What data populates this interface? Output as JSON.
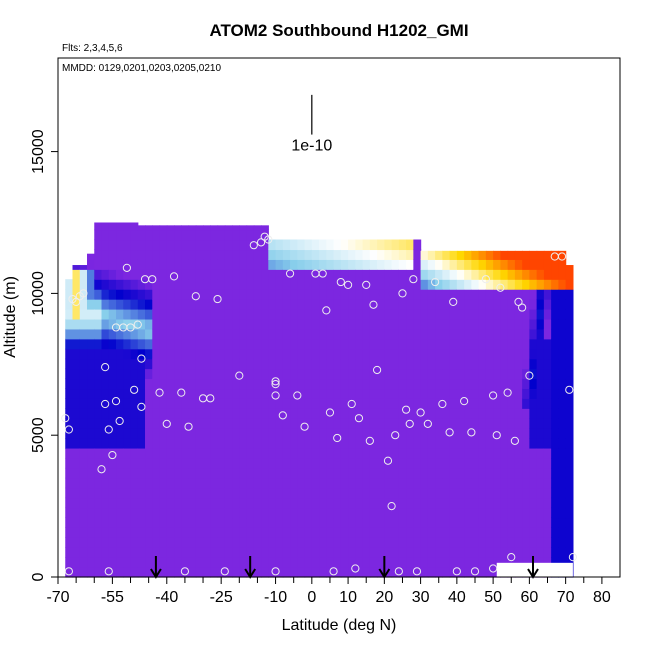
{
  "chart_data": {
    "type": "heatmap",
    "title": "ATOM2 Southbound H1202_GMI",
    "flights_label": "Flts: 2,3,4,5,6",
    "dates_label": "MMDD: 0129,0201,0203,0205,0210",
    "xlabel": "Latitude (deg N)",
    "ylabel": "Altitude (m)",
    "xlim": [
      -70,
      85
    ],
    "ylim": [
      0,
      17500
    ],
    "x_major_ticks": [
      -70,
      -55,
      -40,
      -25,
      -10,
      0,
      10,
      20,
      30,
      40,
      50,
      60,
      70,
      80
    ],
    "x_minor_ticks": [
      -65,
      -60,
      -50,
      -45,
      -35,
      -30,
      -20,
      -15,
      -5,
      5,
      15,
      25,
      35,
      45,
      55,
      65,
      75
    ],
    "y_ticks": [
      0,
      5000,
      10000,
      15000
    ],
    "scale_bar_label": "1e-10",
    "scale_bar": {
      "lat": 0,
      "alt_top": 17000,
      "alt_bottom": 15600
    },
    "color_scale": [
      "#8a2be2",
      "#0000cd",
      "#87ceeb",
      "#ffffff",
      "#ffd700",
      "#ff4500"
    ],
    "observation_points": [
      {
        "lat": -68,
        "alt": 5600
      },
      {
        "lat": -67,
        "alt": 5200
      },
      {
        "lat": -67,
        "alt": 200
      },
      {
        "lat": -66,
        "alt": 9800
      },
      {
        "lat": -65,
        "alt": 9700
      },
      {
        "lat": -64,
        "alt": 9900
      },
      {
        "lat": -63,
        "alt": 10000
      },
      {
        "lat": -58,
        "alt": 3800
      },
      {
        "lat": -57,
        "alt": 7400
      },
      {
        "lat": -57,
        "alt": 6100
      },
      {
        "lat": -56,
        "alt": 5200
      },
      {
        "lat": -56,
        "alt": 200
      },
      {
        "lat": -55,
        "alt": 4300
      },
      {
        "lat": -54,
        "alt": 6200
      },
      {
        "lat": -54,
        "alt": 8800
      },
      {
        "lat": -53,
        "alt": 5500
      },
      {
        "lat": -52,
        "alt": 8800
      },
      {
        "lat": -51,
        "alt": 10900
      },
      {
        "lat": -50,
        "alt": 8800
      },
      {
        "lat": -49,
        "alt": 6600
      },
      {
        "lat": -48,
        "alt": 8900
      },
      {
        "lat": -47,
        "alt": 6000
      },
      {
        "lat": -47,
        "alt": 7700
      },
      {
        "lat": -46,
        "alt": 10500
      },
      {
        "lat": -44,
        "alt": 10500
      },
      {
        "lat": -42,
        "alt": 6500
      },
      {
        "lat": -40,
        "alt": 5400
      },
      {
        "lat": -38,
        "alt": 10600
      },
      {
        "lat": -36,
        "alt": 6500
      },
      {
        "lat": -35,
        "alt": 200
      },
      {
        "lat": -34,
        "alt": 5300
      },
      {
        "lat": -32,
        "alt": 9900
      },
      {
        "lat": -30,
        "alt": 6300
      },
      {
        "lat": -28,
        "alt": 6300
      },
      {
        "lat": -26,
        "alt": 9800
      },
      {
        "lat": -24,
        "alt": 200
      },
      {
        "lat": -20,
        "alt": 7100
      },
      {
        "lat": -16,
        "alt": 11700
      },
      {
        "lat": -14,
        "alt": 11800
      },
      {
        "lat": -13,
        "alt": 12000
      },
      {
        "lat": -12,
        "alt": 11900
      },
      {
        "lat": -10,
        "alt": 6900
      },
      {
        "lat": -10,
        "alt": 6800
      },
      {
        "lat": -10,
        "alt": 6400
      },
      {
        "lat": -10,
        "alt": 200
      },
      {
        "lat": -8,
        "alt": 5700
      },
      {
        "lat": -6,
        "alt": 10700
      },
      {
        "lat": -4,
        "alt": 6400
      },
      {
        "lat": -2,
        "alt": 5300
      },
      {
        "lat": 1,
        "alt": 10700
      },
      {
        "lat": 3,
        "alt": 10700
      },
      {
        "lat": 4,
        "alt": 9400
      },
      {
        "lat": 5,
        "alt": 5800
      },
      {
        "lat": 6,
        "alt": 200
      },
      {
        "lat": 7,
        "alt": 4900
      },
      {
        "lat": 8,
        "alt": 10400
      },
      {
        "lat": 10,
        "alt": 10300
      },
      {
        "lat": 11,
        "alt": 6100
      },
      {
        "lat": 12,
        "alt": 300
      },
      {
        "lat": 13,
        "alt": 5600
      },
      {
        "lat": 15,
        "alt": 10300
      },
      {
        "lat": 16,
        "alt": 4800
      },
      {
        "lat": 17,
        "alt": 9600
      },
      {
        "lat": 18,
        "alt": 7300
      },
      {
        "lat": 21,
        "alt": 4100
      },
      {
        "lat": 22,
        "alt": 2500
      },
      {
        "lat": 23,
        "alt": 5000
      },
      {
        "lat": 24,
        "alt": 200
      },
      {
        "lat": 25,
        "alt": 10000
      },
      {
        "lat": 26,
        "alt": 5900
      },
      {
        "lat": 27,
        "alt": 5400
      },
      {
        "lat": 28,
        "alt": 10500
      },
      {
        "lat": 29,
        "alt": 200
      },
      {
        "lat": 30,
        "alt": 5800
      },
      {
        "lat": 32,
        "alt": 5400
      },
      {
        "lat": 34,
        "alt": 10400
      },
      {
        "lat": 36,
        "alt": 6100
      },
      {
        "lat": 38,
        "alt": 5100
      },
      {
        "lat": 39,
        "alt": 9700
      },
      {
        "lat": 40,
        "alt": 200
      },
      {
        "lat": 42,
        "alt": 6200
      },
      {
        "lat": 44,
        "alt": 5100
      },
      {
        "lat": 45,
        "alt": 200
      },
      {
        "lat": 48,
        "alt": 10500
      },
      {
        "lat": 50,
        "alt": 6400
      },
      {
        "lat": 50,
        "alt": 300
      },
      {
        "lat": 51,
        "alt": 5000
      },
      {
        "lat": 52,
        "alt": 10200
      },
      {
        "lat": 54,
        "alt": 6500
      },
      {
        "lat": 55,
        "alt": 700
      },
      {
        "lat": 56,
        "alt": 4800
      },
      {
        "lat": 57,
        "alt": 9700
      },
      {
        "lat": 58,
        "alt": 9500
      },
      {
        "lat": 60,
        "alt": 7100
      },
      {
        "lat": 67,
        "alt": 11300
      },
      {
        "lat": 69,
        "alt": 11300
      },
      {
        "lat": 71,
        "alt": 6600
      },
      {
        "lat": 72,
        "alt": 700
      }
    ],
    "arrow_latitudes": [
      -43,
      -17,
      20,
      61
    ]
  }
}
